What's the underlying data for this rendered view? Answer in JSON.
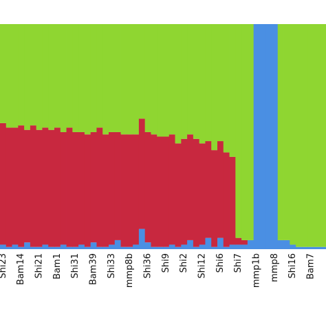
{
  "chart_data": {
    "type": "stacked-bar",
    "categories": [
      "Shi23",
      null,
      null,
      "Bam14",
      null,
      null,
      "Shi21",
      null,
      null,
      "Bam1",
      null,
      null,
      "Shi31",
      null,
      null,
      "Bam39",
      null,
      null,
      "Shi33",
      null,
      null,
      "mmp8b",
      null,
      null,
      "Shi36",
      null,
      null,
      "Shi9",
      null,
      null,
      "Shi2",
      null,
      null,
      "Shi12",
      null,
      null,
      "Shi6",
      null,
      null,
      "Shi7",
      null,
      null,
      "mmp1b",
      null,
      null,
      "mmp8",
      null,
      null,
      "Shi16",
      null,
      null,
      "Bam7",
      null,
      null
    ],
    "series": [
      {
        "color": "#4a8fe3",
        "values": [
          0.02,
          0.01,
          0.02,
          0.01,
          0.03,
          0.01,
          0.01,
          0.02,
          0.01,
          0.01,
          0.02,
          0.01,
          0.01,
          0.02,
          0.01,
          0.03,
          0.01,
          0.01,
          0.02,
          0.04,
          0.01,
          0.01,
          0.02,
          0.09,
          0.03,
          0.01,
          0.01,
          0.01,
          0.02,
          0.01,
          0.02,
          0.04,
          0.01,
          0.02,
          0.05,
          0.01,
          0.05,
          0.01,
          0.02,
          0.02,
          0.02,
          0.04,
          1,
          1,
          1,
          1,
          0.04,
          0.04,
          0.02,
          0.01,
          0.01,
          0.01,
          0.01,
          0.01
        ]
      },
      {
        "color": "#c8283f",
        "values": [
          0.54,
          0.53,
          0.52,
          0.54,
          0.5,
          0.54,
          0.52,
          0.52,
          0.52,
          0.53,
          0.5,
          0.53,
          0.51,
          0.5,
          0.5,
          0.49,
          0.53,
          0.5,
          0.5,
          0.48,
          0.5,
          0.5,
          0.49,
          0.49,
          0.49,
          0.5,
          0.49,
          0.49,
          0.49,
          0.46,
          0.47,
          0.47,
          0.48,
          0.45,
          0.43,
          0.43,
          0.43,
          0.42,
          0.39,
          0.03,
          0.02,
          0,
          0,
          0,
          0,
          0,
          0,
          0,
          0,
          0,
          0,
          0,
          0,
          0
        ]
      },
      {
        "color": "#8fd631",
        "values": [
          0.44,
          0.46,
          0.46,
          0.45,
          0.47,
          0.45,
          0.47,
          0.46,
          0.47,
          0.46,
          0.48,
          0.46,
          0.48,
          0.48,
          0.49,
          0.48,
          0.46,
          0.49,
          0.48,
          0.48,
          0.49,
          0.49,
          0.49,
          0.42,
          0.48,
          0.49,
          0.5,
          0.5,
          0.49,
          0.53,
          0.51,
          0.49,
          0.51,
          0.53,
          0.52,
          0.56,
          0.52,
          0.57,
          0.59,
          0.95,
          0.96,
          0.96,
          0,
          0,
          0,
          0,
          0.96,
          0.96,
          0.98,
          0.99,
          0.99,
          0.99,
          0.99,
          0.99
        ]
      }
    ],
    "ylim": [
      0,
      1
    ]
  }
}
